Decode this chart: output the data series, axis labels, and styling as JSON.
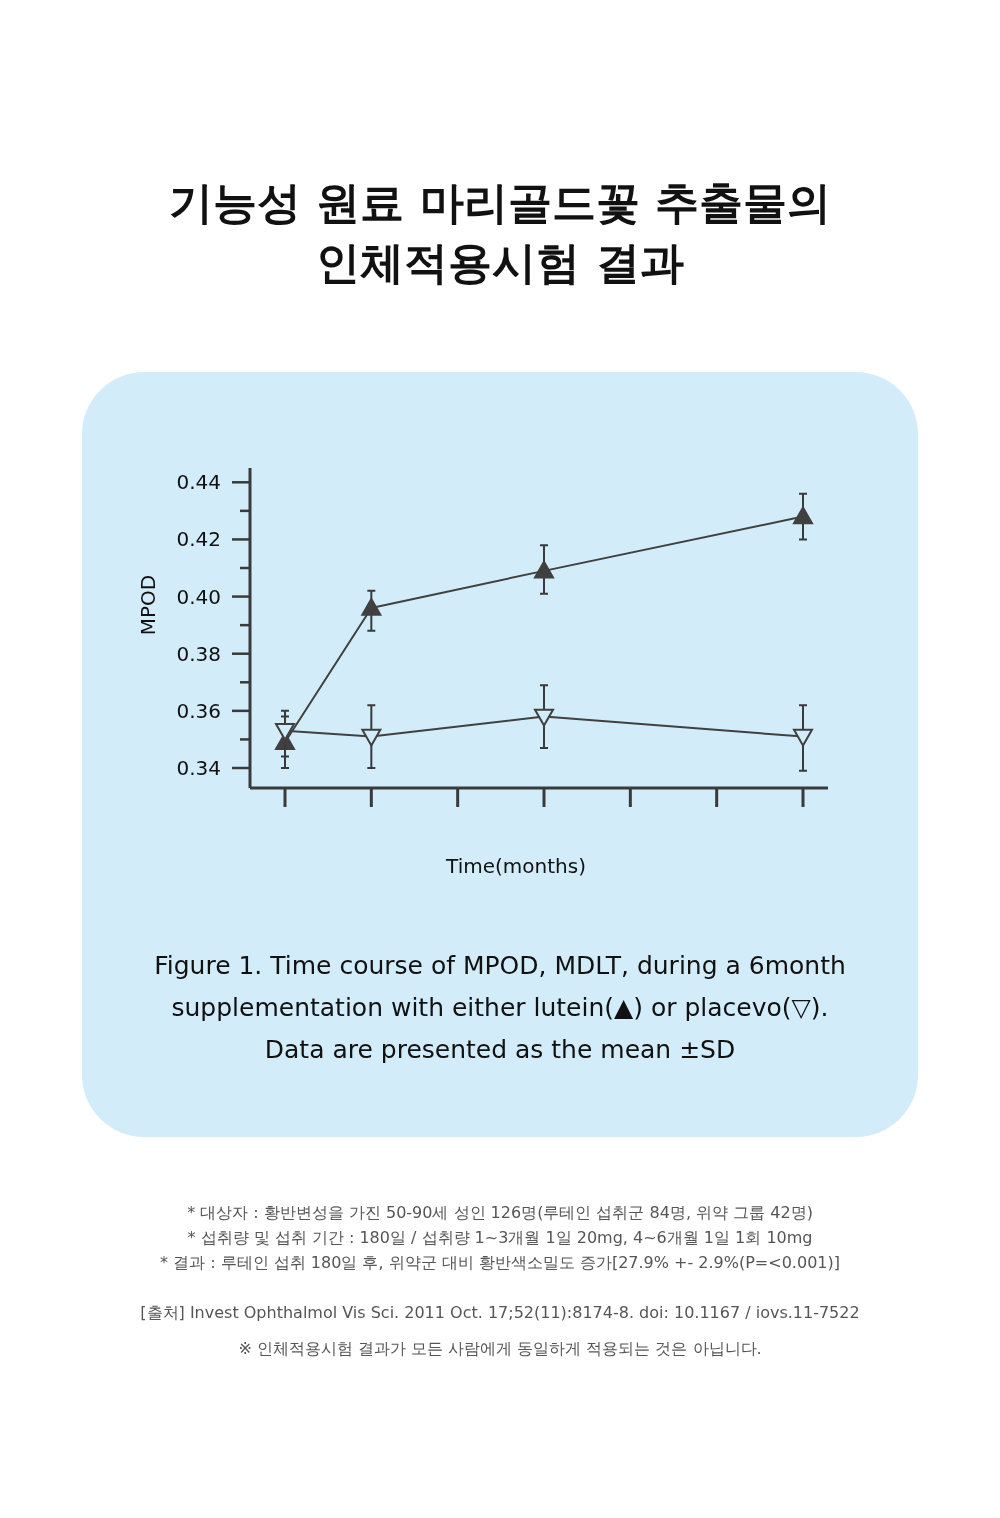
{
  "chart_data": {
    "type": "line",
    "title": "기능성 원료 마리골드꽃 추출물의\n인체적용시험 결과",
    "xlabel": "Time(months)",
    "ylabel": "MPOD",
    "categories": [
      null,
      null,
      null,
      null,
      null,
      null,
      null
    ],
    "ylim": [
      0.333,
      0.445
    ],
    "yticks": [
      {
        "value": 0.34,
        "label": "0.34"
      },
      {
        "value": 0.35,
        "label": null
      },
      {
        "value": 0.36,
        "label": "0.36"
      },
      {
        "value": 0.37,
        "label": null
      },
      {
        "value": 0.38,
        "label": "0.38"
      },
      {
        "value": 0.39,
        "label": null
      },
      {
        "value": 0.4,
        "label": "0.40"
      },
      {
        "value": 0.41,
        "label": null
      },
      {
        "value": 0.42,
        "label": "0.42"
      },
      {
        "value": 0.43,
        "label": null
      },
      {
        "value": 0.44,
        "label": "0.44"
      }
    ],
    "tick_labels": "y",
    "grid": false,
    "line_style": "solid",
    "series": [
      {
        "color": "#404040",
        "marker": "triangle",
        "values": [
          0.349,
          0.396,
          null,
          0.409,
          null,
          null,
          0.428
        ],
        "errors": [
          [
            0.34,
            0.358
          ],
          [
            0.388,
            0.402
          ],
          null,
          [
            0.401,
            0.418
          ],
          null,
          null,
          [
            0.42,
            0.436
          ]
        ]
      },
      {
        "color": "#404040",
        "marker": "triangle-down",
        "values": [
          0.353,
          0.351,
          null,
          0.358,
          null,
          null,
          0.351
        ],
        "errors": [
          [
            0.344,
            0.36
          ],
          [
            0.34,
            0.362
          ],
          null,
          [
            0.347,
            0.369
          ],
          null,
          null,
          [
            0.339,
            0.362
          ]
        ]
      }
    ],
    "annotations": [
      "Figure 1. Time course of MPOD, MDLT, during a 6month",
      "supplementation with either lutein(▲) or placevo(▽).",
      "Data are presented as the mean ±SD",
      "* 대상자 : 황반변성을 가진 50-90세 성인 126명(루테인 섭취군 84명, 위약 그룹 42명)",
      "* 섭취량 및 섭취 기간 : 180일 / 섭취량 1~3개월 1일 20mg, 4~6개월 1일 1회 10mg",
      "* 결과 : 루테인 섭취 180일 후, 위약군 대비 황반색소밀도 증가[27.9% +- 2.9%(P=<0.001)]",
      "[출처] Invest Ophthalmol Vis Sci. 2011 Oct. 17;52(11):8174-8. doi: 10.1167 / iovs.11-7522",
      "※ 인체적용시험 결과가 모든 사람에게 동일하게 적용되는 것은 아닙니다."
    ]
  }
}
